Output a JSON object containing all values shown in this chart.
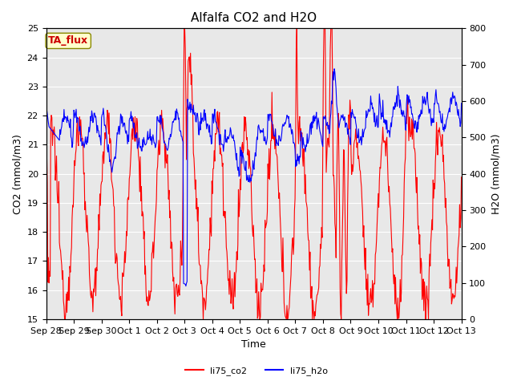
{
  "title": "Alfalfa CO2 and H2O",
  "xlabel": "Time",
  "ylabel_left": "CO2 (mmol/m3)",
  "ylabel_right": "H2O (mmol/m3)",
  "co2_label": "li75_co2",
  "h2o_label": "li75_h2o",
  "annotation": "TA_flux",
  "co2_color": "#ff0000",
  "h2o_color": "#0000ff",
  "co2_ylim": [
    15.0,
    25.0
  ],
  "h2o_ylim": [
    0,
    800
  ],
  "plot_bg_color": "#e8e8e8",
  "title_fontsize": 11,
  "axis_fontsize": 9,
  "tick_fontsize": 8,
  "annotation_fontsize": 9,
  "line_width": 0.8,
  "tick_labels": [
    "Sep 28",
    "Sep 29",
    "Sep 30",
    "Oct 1",
    "Oct 2",
    "Oct 3",
    "Oct 4",
    "Oct 5",
    "Oct 6",
    "Oct 7",
    "Oct 8",
    "Oct 9",
    "Oct 10",
    "Oct 11",
    "Oct 12",
    "Oct 13"
  ]
}
